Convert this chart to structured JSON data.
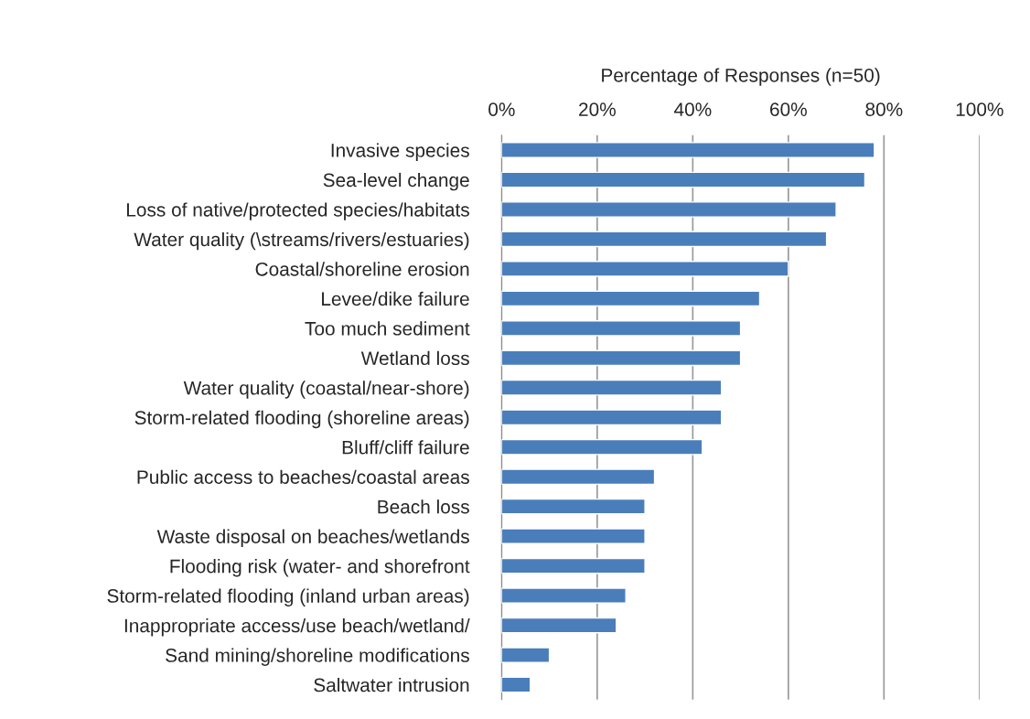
{
  "chart_data": {
    "type": "bar",
    "orientation": "horizontal",
    "xlabel": "Percentage of Responses (n=50)",
    "categories": [
      "Invasive species",
      "Sea-level change",
      "Loss of native/protected species/habitats",
      "Water quality (\\streams/rivers/estuaries)",
      "Coastal/shoreline erosion",
      "Levee/dike failure",
      "Too much sediment",
      "Wetland loss",
      "Water quality (coastal/near-shore)",
      "Storm-related flooding (shoreline areas)",
      "Bluff/cliff failure",
      "Public access to beaches/coastal areas",
      "Beach loss",
      "Waste disposal on beaches/wetlands",
      "Flooding risk (water- and shorefront",
      "Storm-related flooding (inland urban areas)",
      "Inappropriate access/use beach/wetland/",
      "Sand mining/shoreline modifications",
      "Saltwater intrusion"
    ],
    "values": [
      78,
      76,
      70,
      68,
      60,
      54,
      50,
      50,
      46,
      46,
      42,
      32,
      30,
      30,
      30,
      26,
      24,
      10,
      6
    ],
    "color": "#4a7ebb",
    "xlim": [
      0,
      100
    ],
    "xticks": [
      {
        "value": 0,
        "label": "0%"
      },
      {
        "value": 20,
        "label": "20%"
      },
      {
        "value": 40,
        "label": "40%"
      },
      {
        "value": 60,
        "label": "60%"
      },
      {
        "value": 80,
        "label": "80%"
      },
      {
        "value": 100,
        "label": "100%"
      }
    ],
    "grid": "x"
  }
}
